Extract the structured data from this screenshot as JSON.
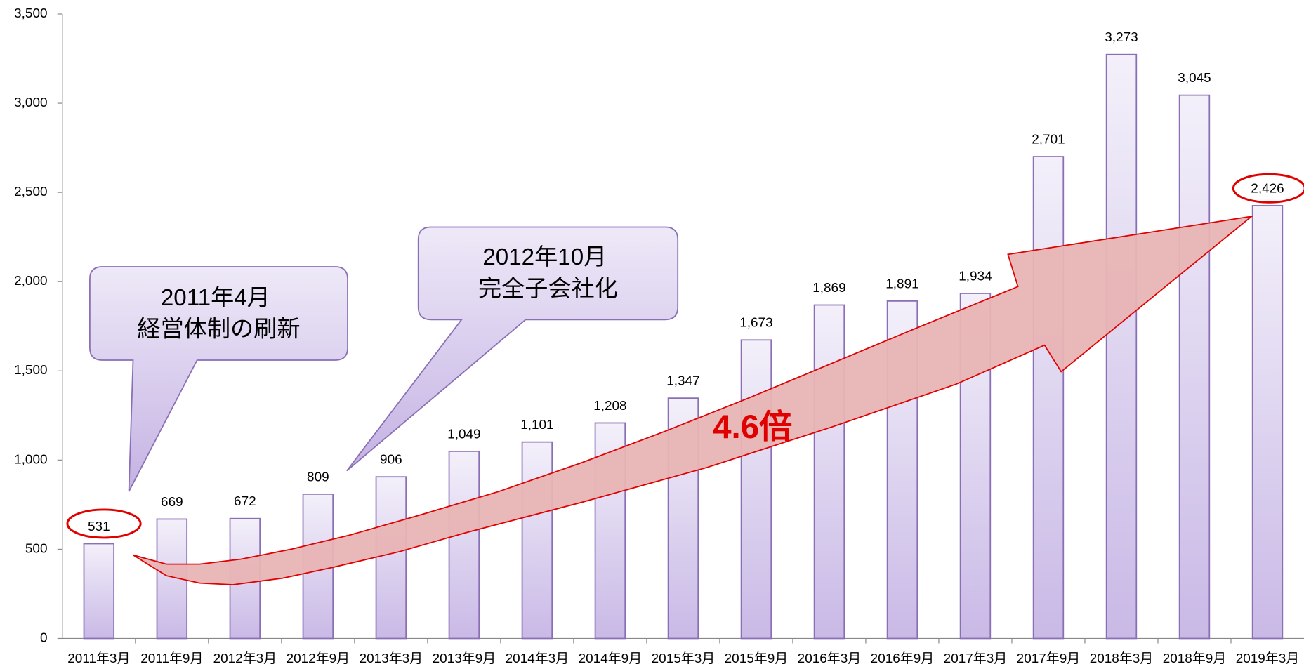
{
  "chart_data": {
    "type": "bar",
    "categories": [
      "2011年3月",
      "2011年9月",
      "2012年3月",
      "2012年9月",
      "2013年3月",
      "2013年9月",
      "2014年3月",
      "2014年9月",
      "2015年3月",
      "2015年9月",
      "2016年3月",
      "2016年9月",
      "2017年3月",
      "2017年9月",
      "2018年3月",
      "2018年9月",
      "2019年3月"
    ],
    "values": [
      531,
      669,
      672,
      809,
      906,
      1049,
      1101,
      1208,
      1347,
      1673,
      1869,
      1891,
      1934,
      2701,
      3273,
      3045,
      2426
    ],
    "value_labels": [
      "531",
      "669",
      "672",
      "809",
      "906",
      "1,049",
      "1,101",
      "1,208",
      "1,347",
      "1,673",
      "1,869",
      "1,891",
      "1,934",
      "2,701",
      "3,273",
      "3,045",
      "2,426"
    ],
    "color": "#c9b9e6",
    "ylim": [
      0,
      3500
    ],
    "yticks": [
      0,
      500,
      {
        "value": 1000,
        "label": "1,000"
      },
      {
        "value": 1500,
        "label": "1,500"
      },
      {
        "value": 2000,
        "label": "2,000"
      },
      {
        "value": 2500,
        "label": "2,500"
      },
      {
        "value": 3000,
        "label": "3,000"
      },
      {
        "value": 3500,
        "label": "3,500"
      }
    ],
    "grid": false,
    "callouts": [
      {
        "lines": [
          "2011年4月",
          "経営体制の刷新"
        ]
      },
      {
        "lines": [
          "2012年10月",
          "完全子会社化"
        ]
      }
    ],
    "arrow_label": "4.6倍"
  }
}
